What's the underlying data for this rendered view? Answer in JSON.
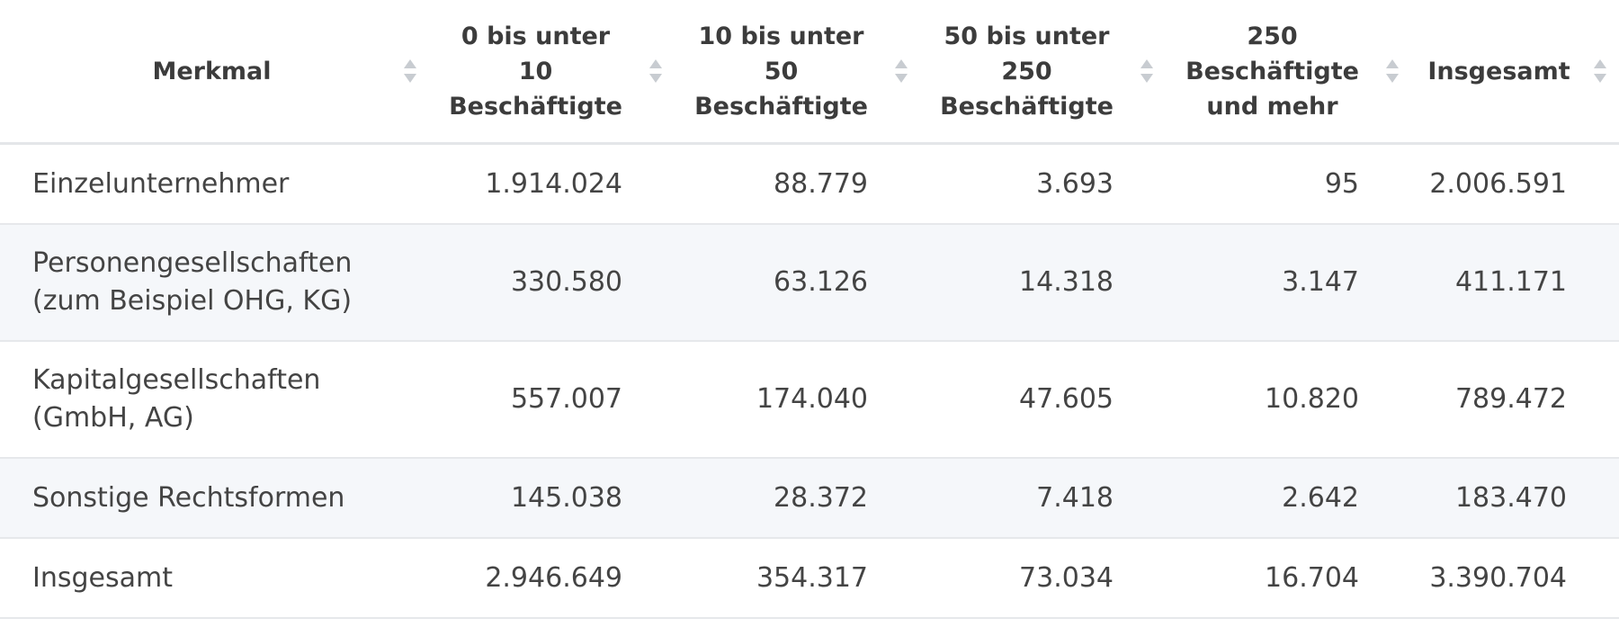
{
  "table": {
    "headers": [
      "Merkmal",
      "0 bis unter\n10\nBeschäftigte",
      "10 bis unter\n50\nBeschäftigte",
      "50 bis unter\n250\nBeschäftigte",
      "250\nBeschäftigte\nund mehr",
      "Insgesamt"
    ],
    "rows": [
      {
        "label": "Einzelunternehmer",
        "values": [
          "1.914.024",
          "88.779",
          "3.693",
          "95",
          "2.006.591"
        ]
      },
      {
        "label": "Personengesellschaften\n(zum Beispiel OHG, KG)",
        "values": [
          "330.580",
          "63.126",
          "14.318",
          "3.147",
          "411.171"
        ]
      },
      {
        "label": "Kapitalgesellschaften\n(GmbH, AG)",
        "values": [
          "557.007",
          "174.040",
          "47.605",
          "10.820",
          "789.472"
        ]
      },
      {
        "label": "Sonstige Rechtsformen",
        "values": [
          "145.038",
          "28.372",
          "7.418",
          "2.642",
          "183.470"
        ]
      },
      {
        "label": "Insgesamt",
        "values": [
          "2.946.649",
          "354.317",
          "73.034",
          "16.704",
          "3.390.704"
        ]
      }
    ]
  },
  "colors": {
    "header_text": "#3c3c3c",
    "body_text": "#444444",
    "row_alt_bg": "#f5f7fa",
    "divider": "#e6e8eb",
    "sort_icon": "#c8ccd1"
  }
}
